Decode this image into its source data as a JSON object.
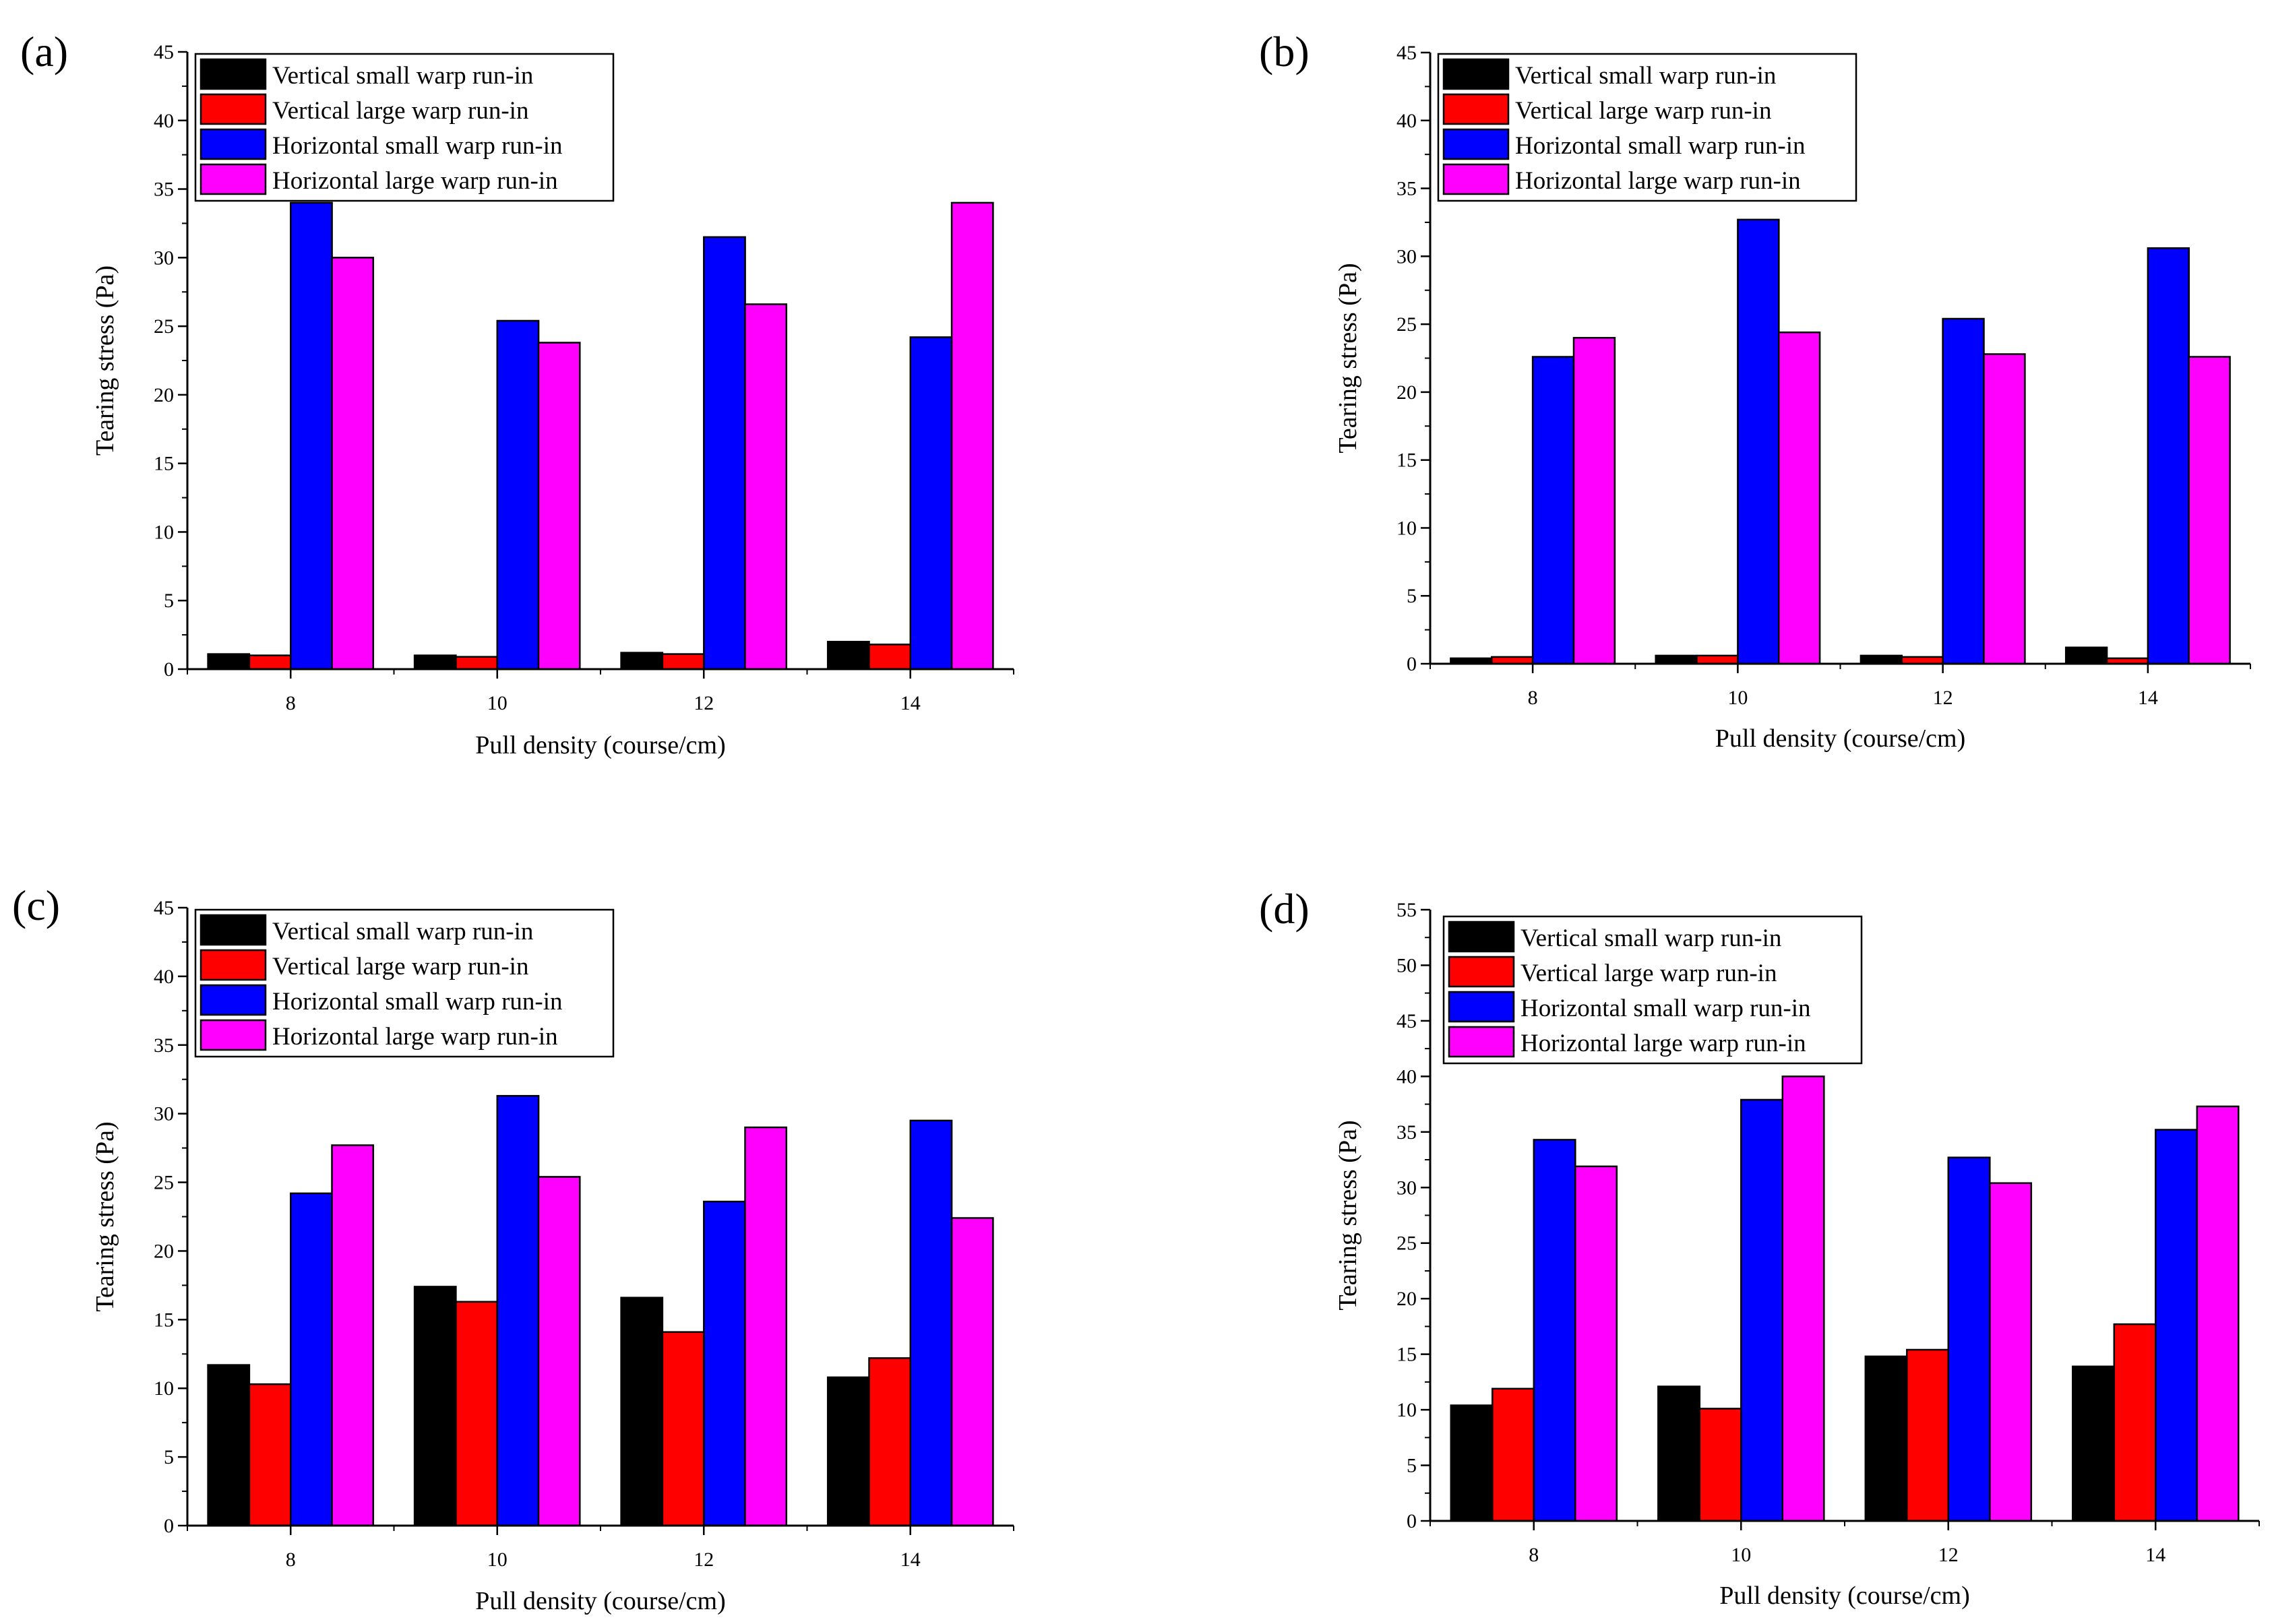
{
  "colors": {
    "vertical_small": "#000000",
    "vertical_large": "#ff0000",
    "horizontal_small": "#0000ff",
    "horizontal_large": "#ff00ff"
  },
  "chart_data": [
    {
      "type": "bar",
      "panel": "(a)",
      "title": "",
      "xlabel": "Pull density (course/cm)",
      "ylabel": "Tearing stress (Pa)",
      "categories": [
        "8",
        "10",
        "12",
        "14"
      ],
      "ylim": [
        0,
        45
      ],
      "yticks": [
        0,
        5,
        10,
        15,
        20,
        25,
        30,
        35,
        40,
        45
      ],
      "legend_position": "top-left",
      "grid": false,
      "series": [
        {
          "name": "Vertical small warp run-in",
          "color": "#000000",
          "values": [
            1.1,
            1.0,
            1.2,
            2.0
          ]
        },
        {
          "name": "Vertical large warp run-in",
          "color": "#ff0000",
          "values": [
            1.0,
            0.9,
            1.1,
            1.8
          ]
        },
        {
          "name": "Horizontal small warp run-in",
          "color": "#0000ff",
          "values": [
            34.0,
            25.4,
            31.5,
            24.2
          ]
        },
        {
          "name": "Horizontal large warp run-in",
          "color": "#ff00ff",
          "values": [
            30.0,
            23.8,
            26.6,
            34.0
          ]
        }
      ]
    },
    {
      "type": "bar",
      "panel": "(b)",
      "title": "",
      "xlabel": "Pull density (course/cm)",
      "ylabel": "Tearing stress (Pa)",
      "categories": [
        "8",
        "10",
        "12",
        "14"
      ],
      "ylim": [
        0,
        45
      ],
      "yticks": [
        0,
        5,
        10,
        15,
        20,
        25,
        30,
        35,
        40,
        45
      ],
      "legend_position": "top-left",
      "grid": false,
      "series": [
        {
          "name": "Vertical small warp run-in",
          "color": "#000000",
          "values": [
            0.4,
            0.6,
            0.6,
            1.2
          ]
        },
        {
          "name": "Vertical large warp run-in",
          "color": "#ff0000",
          "values": [
            0.5,
            0.6,
            0.5,
            0.4
          ]
        },
        {
          "name": "Horizontal small warp run-in",
          "color": "#0000ff",
          "values": [
            22.6,
            32.7,
            25.4,
            30.6
          ]
        },
        {
          "name": "Horizontal large warp run-in",
          "color": "#ff00ff",
          "values": [
            24.0,
            24.4,
            22.8,
            22.6
          ]
        }
      ]
    },
    {
      "type": "bar",
      "panel": "(c)",
      "title": "",
      "xlabel": "Pull density (course/cm)",
      "ylabel": "Tearing stress (Pa)",
      "categories": [
        "8",
        "10",
        "12",
        "14"
      ],
      "ylim": [
        0,
        45
      ],
      "yticks": [
        0,
        5,
        10,
        15,
        20,
        25,
        30,
        35,
        40,
        45
      ],
      "legend_position": "top-left",
      "grid": false,
      "series": [
        {
          "name": "Vertical small warp run-in",
          "color": "#000000",
          "values": [
            11.7,
            17.4,
            16.6,
            10.8
          ]
        },
        {
          "name": "Vertical large warp run-in",
          "color": "#ff0000",
          "values": [
            10.3,
            16.3,
            14.1,
            12.2
          ]
        },
        {
          "name": "Horizontal small warp run-in",
          "color": "#0000ff",
          "values": [
            24.2,
            31.3,
            23.6,
            29.5
          ]
        },
        {
          "name": "Horizontal large warp run-in",
          "color": "#ff00ff",
          "values": [
            27.7,
            25.4,
            29.0,
            22.4
          ]
        }
      ]
    },
    {
      "type": "bar",
      "panel": "(d)",
      "title": "",
      "xlabel": "Pull density (course/cm)",
      "ylabel": "Tearing stress (Pa)",
      "categories": [
        "8",
        "10",
        "12",
        "14"
      ],
      "ylim": [
        0,
        55
      ],
      "yticks": [
        0,
        5,
        10,
        15,
        20,
        25,
        30,
        35,
        40,
        45,
        50,
        55
      ],
      "legend_position": "top-left",
      "grid": false,
      "series": [
        {
          "name": "Vertical small warp run-in",
          "color": "#000000",
          "values": [
            10.4,
            12.1,
            14.8,
            13.9
          ]
        },
        {
          "name": "Vertical large warp run-in",
          "color": "#ff0000",
          "values": [
            11.9,
            10.1,
            15.4,
            17.7
          ]
        },
        {
          "name": "Horizontal small warp run-in",
          "color": "#0000ff",
          "values": [
            34.3,
            37.9,
            32.7,
            35.2
          ]
        },
        {
          "name": "Horizontal large warp run-in",
          "color": "#ff00ff",
          "values": [
            31.9,
            40.0,
            30.4,
            37.3
          ]
        }
      ]
    }
  ]
}
